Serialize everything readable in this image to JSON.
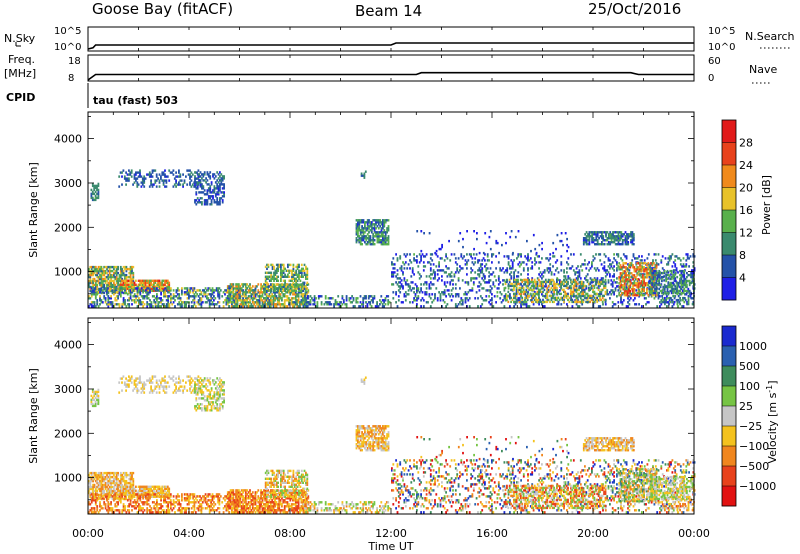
{
  "header": {
    "station": "Goose Bay (fitACF)",
    "beam": "Beam 14",
    "date": "25/Oct/2016"
  },
  "strip_labels": {
    "nsky": "N.Sky",
    "nsearch": "N.Search",
    "freq_top": "Freq.",
    "freq_unit": "[MHz]",
    "nave": "Nave",
    "cpid": "CPID",
    "cpid_value": "tau (fast) 503",
    "nsky_ticks": [
      "10^5",
      "10^0"
    ],
    "nsearch_ticks": [
      "10^5",
      "10^0"
    ],
    "freq_ticks": [
      "18",
      "8"
    ],
    "nave_ticks": [
      "60",
      "0"
    ]
  },
  "chart_data": [
    {
      "type": "line",
      "name": "noise-strip",
      "x_unit": "hours UT",
      "x": [
        0,
        0.2,
        0.3,
        12.0,
        12.2,
        24
      ],
      "y_log10": [
        0,
        0.3,
        1.0,
        1.0,
        1.5,
        1.5
      ]
    },
    {
      "type": "line",
      "name": "frequency-nave-strip",
      "x_unit": "hours UT",
      "x": [
        0,
        0.3,
        13.0,
        13.2,
        21.5,
        21.8,
        24
      ],
      "nave": [
        0,
        15,
        15,
        20,
        20,
        15,
        15
      ]
    },
    {
      "type": "heatmap",
      "name": "power-panel",
      "ylabel": "Slant Range [km]",
      "yticks": [
        "1000",
        "2000",
        "3000",
        "4000"
      ],
      "ylim": [
        180,
        4600
      ],
      "xlim": [
        0,
        24
      ],
      "colorbar": {
        "label": "Power [dB]",
        "ticks": [
          "4",
          "8",
          "12",
          "16",
          "20",
          "24",
          "28"
        ],
        "colors": [
          "#1f1fe6",
          "#2452a8",
          "#3a8a6e",
          "#59b04c",
          "#e8c22a",
          "#f08a1c",
          "#e8421c",
          "#e11a1a"
        ]
      }
    },
    {
      "type": "heatmap",
      "name": "velocity-panel",
      "ylabel": "Slant Range [km]",
      "yticks": [
        "1000",
        "2000",
        "3000",
        "4000"
      ],
      "ylim": [
        180,
        4600
      ],
      "xlim": [
        0,
        24
      ],
      "xlabel": "Time UT",
      "xticks": [
        "00:00",
        "04:00",
        "08:00",
        "12:00",
        "16:00",
        "20:00",
        "00:00"
      ],
      "colorbar": {
        "label": "Velocity [m s",
        "label_sup": "-1",
        "label_end": "]",
        "ticks": [
          "1000",
          "500",
          "100",
          "25",
          "−25",
          "−100",
          "−500",
          "−1000"
        ],
        "colors": [
          "#1a2acf",
          "#2a60b0",
          "#3e8c5c",
          "#76c444",
          "#c6c6c6",
          "#f4c21e",
          "#f0861e",
          "#e8421c",
          "#e21212"
        ]
      }
    }
  ]
}
